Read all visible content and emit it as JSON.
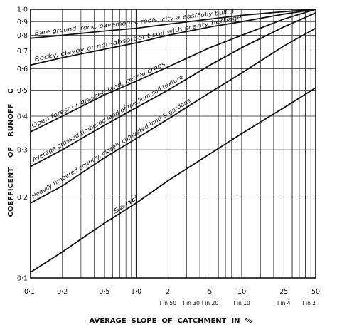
{
  "chart_data": {
    "type": "line",
    "title": "",
    "xlabel": "AVERAGE  SLOPE  OF  CATCHMENT  IN  %",
    "ylabel": "COEFFICENT    OF    RUNOFF",
    "ylabel_symbol": "C",
    "xscale": "log",
    "yscale": "log",
    "xlim": [
      0.1,
      50
    ],
    "ylim": [
      0.1,
      1.0
    ],
    "grid": true,
    "x_ticks": [
      {
        "value": 0.1,
        "label": "0·1"
      },
      {
        "value": 0.2,
        "label": "0·2"
      },
      {
        "value": 0.5,
        "label": "0·5"
      },
      {
        "value": 1,
        "label": "1·0"
      },
      {
        "value": 2,
        "label": "2"
      },
      {
        "value": 5,
        "label": "5"
      },
      {
        "value": 10,
        "label": "10"
      },
      {
        "value": 25,
        "label": "25"
      },
      {
        "value": 50,
        "label": "50"
      }
    ],
    "slope_ratio_ticks": [
      {
        "value": 2,
        "label": "I in 50"
      },
      {
        "value": 3.33,
        "label": "I in 30"
      },
      {
        "value": 5,
        "label": "I in 20"
      },
      {
        "value": 10,
        "label": "I in 10"
      },
      {
        "value": 25,
        "label": "I in 4"
      },
      {
        "value": 50,
        "label": "I in 2"
      }
    ],
    "y_ticks": [
      {
        "value": 1.0,
        "label": "1·0"
      },
      {
        "value": 0.9,
        "label": "0·9"
      },
      {
        "value": 0.8,
        "label": "0·8"
      },
      {
        "value": 0.7,
        "label": "0·7"
      },
      {
        "value": 0.6,
        "label": "0·6"
      },
      {
        "value": 0.5,
        "label": "0·5"
      },
      {
        "value": 0.4,
        "label": "0·4"
      },
      {
        "value": 0.3,
        "label": "0·3"
      },
      {
        "value": 0.2,
        "label": "0·2"
      },
      {
        "value": 0.1,
        "label": "0·1"
      }
    ],
    "series": [
      {
        "name": "Bare ground, rock, pavements, roofs, city areas(Fully built.)",
        "x": [
          0.1,
          0.2,
          0.5,
          1,
          2,
          5,
          10,
          25,
          50
        ],
        "y": [
          0.78,
          0.8,
          0.83,
          0.85,
          0.88,
          0.92,
          0.95,
          0.98,
          1.0
        ]
      },
      {
        "name": "Rocky, clayey or non-absorbent soil with scanty herbage",
        "x": [
          0.1,
          0.2,
          0.5,
          1,
          2,
          5,
          10,
          25,
          50
        ],
        "y": [
          0.62,
          0.66,
          0.71,
          0.75,
          0.8,
          0.86,
          0.9,
          0.96,
          1.0
        ]
      },
      {
        "name": "Open forest or grassed land, cereal crops",
        "x": [
          0.1,
          0.2,
          0.5,
          1,
          2,
          5,
          10,
          25,
          50
        ],
        "y": [
          0.35,
          0.4,
          0.48,
          0.54,
          0.61,
          0.72,
          0.8,
          0.92,
          1.0
        ]
      },
      {
        "name": "Average grassed timbered land of medium soil texture",
        "x": [
          0.1,
          0.2,
          0.5,
          1,
          2,
          5,
          10,
          25,
          50
        ],
        "y": [
          0.26,
          0.3,
          0.37,
          0.43,
          0.5,
          0.62,
          0.72,
          0.86,
          0.97
        ]
      },
      {
        "name": "Heavily timbered country, closely cultivated land & gardens",
        "x": [
          0.1,
          0.2,
          0.5,
          1,
          2,
          5,
          10,
          25,
          50
        ],
        "y": [
          0.19,
          0.22,
          0.28,
          0.33,
          0.39,
          0.49,
          0.58,
          0.73,
          0.85
        ]
      },
      {
        "name": "Sand",
        "x": [
          0.1,
          0.2,
          0.5,
          1,
          2,
          5,
          10,
          25,
          50
        ],
        "y": [
          0.105,
          0.125,
          0.16,
          0.19,
          0.23,
          0.29,
          0.345,
          0.43,
          0.51
        ]
      }
    ]
  },
  "colors": {
    "background": "#ffffff",
    "ink": "#111111",
    "grid": "#222222"
  }
}
